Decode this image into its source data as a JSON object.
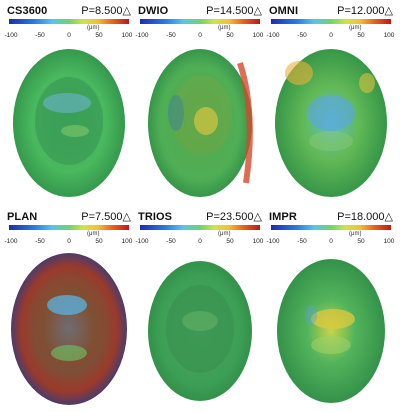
{
  "panels": [
    {
      "name": "CS3600",
      "p": "P=8.500△"
    },
    {
      "name": "DWIO",
      "p": "P=14.500△"
    },
    {
      "name": "OMNI",
      "p": "P=12.000△"
    },
    {
      "name": "PLAN",
      "p": "P=7.500△"
    },
    {
      "name": "TRIOS",
      "p": "P=23.500△"
    },
    {
      "name": "IMPR",
      "p": "P=18.000△"
    }
  ],
  "scale": {
    "unit": "(μm)",
    "ticks": [
      "-100",
      "-50",
      "0",
      "50",
      "100"
    ]
  }
}
